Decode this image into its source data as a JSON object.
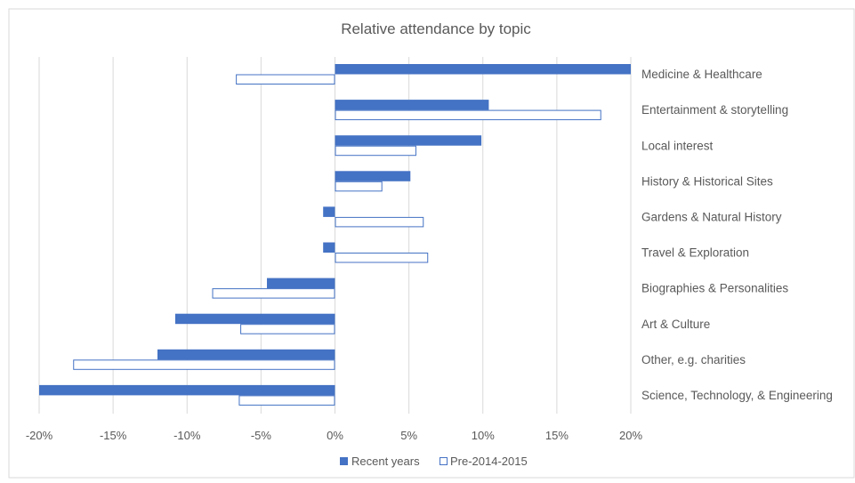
{
  "colors": {
    "recent": "#4472c4",
    "pre": "#ffffff",
    "pre_stroke": "#4472c4",
    "grid": "#d9d9d9",
    "text": "#595959",
    "frame": "#d9d9d9"
  },
  "chart_data": {
    "type": "bar",
    "orientation": "horizontal",
    "title": "Relative attendance by topic",
    "xlabel": "",
    "ylabel": "",
    "xlim": [
      -0.2,
      0.2
    ],
    "xticks": [
      -0.2,
      -0.15,
      -0.1,
      -0.05,
      0,
      0.05,
      0.1,
      0.15,
      0.2
    ],
    "tick_labels": [
      "-20%",
      "-15%",
      "-10%",
      "-5%",
      "0%",
      "5%",
      "10%",
      "15%",
      "20%"
    ],
    "grid": true,
    "legend_position": "bottom",
    "categories": [
      "Medicine & Healthcare",
      "Entertainment & storytelling",
      "Local interest",
      "History & Historical Sites",
      "Gardens & Natural History",
      "Travel & Exploration",
      "Biographies & Personalities",
      "Art & Culture",
      "Other, e.g. charities",
      "Science, Technology, & Engineering"
    ],
    "series": [
      {
        "name": "Recent years",
        "style": "filled",
        "values": [
          0.2,
          0.104,
          0.099,
          0.051,
          -0.008,
          -0.008,
          -0.046,
          -0.108,
          -0.12,
          -0.2
        ]
      },
      {
        "name": "Pre-2014-2015",
        "style": "outline",
        "values": [
          -0.067,
          0.18,
          0.055,
          0.032,
          0.06,
          0.063,
          -0.083,
          -0.064,
          -0.177,
          -0.065
        ]
      }
    ]
  }
}
